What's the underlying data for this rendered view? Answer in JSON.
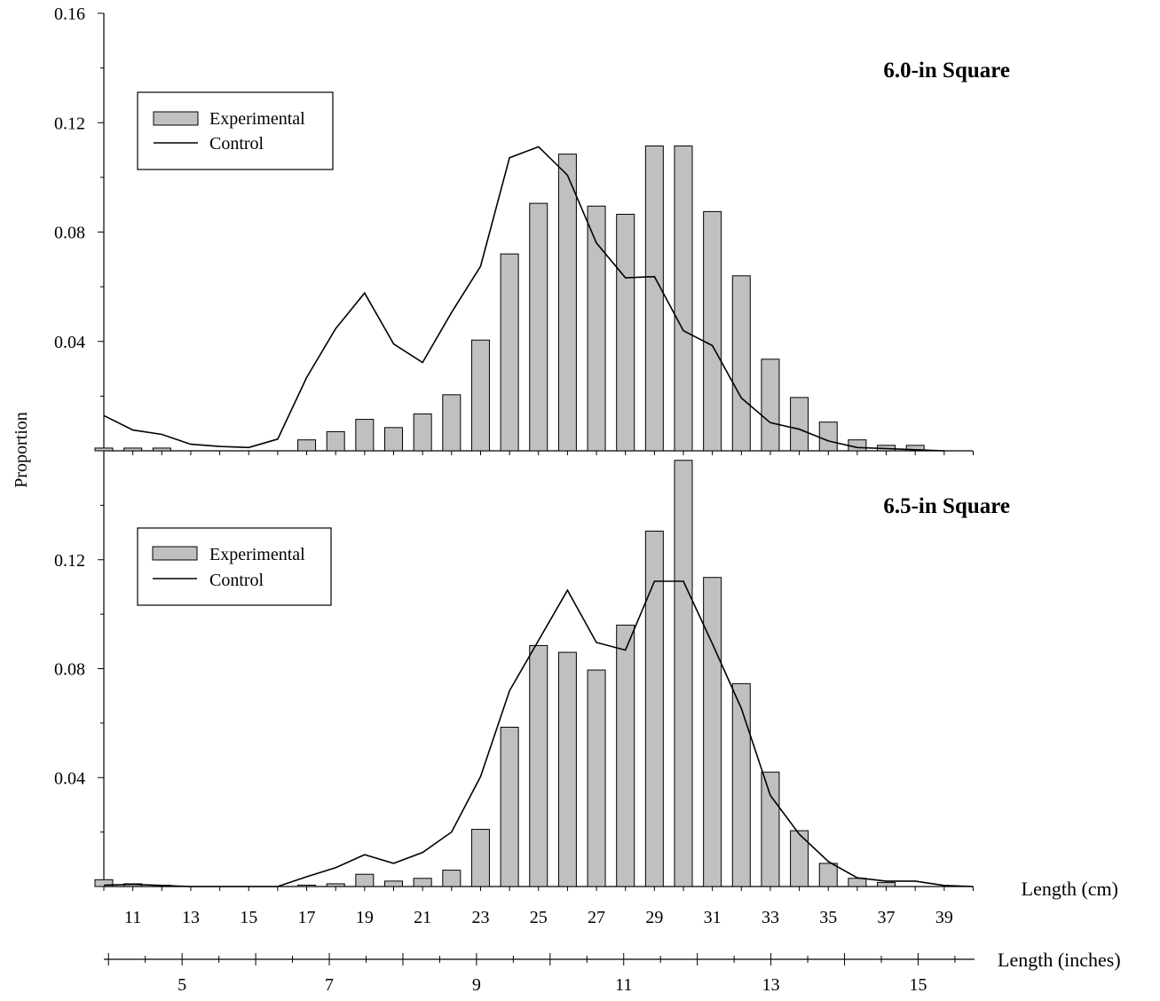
{
  "y_axis_label": "Proportion",
  "x_axis_label_cm": "Length (cm)",
  "x_axis_label_in": "Length (inches)",
  "cm_tick_labels": [
    "11",
    "13",
    "15",
    "17",
    "19",
    "21",
    "23",
    "25",
    "27",
    "29",
    "31",
    "33",
    "35",
    "37",
    "39"
  ],
  "inch_tick_labels": [
    "5",
    "7",
    "9",
    "11",
    "13",
    "15"
  ],
  "colors": {
    "bar_fill": "#c0c0c0",
    "bar_stroke": "#000000",
    "line": "#000000"
  },
  "chart_data": [
    {
      "type": "bar",
      "title": "6.0-in Square",
      "legend": {
        "bar": "Experimental",
        "line": "Control",
        "position": "top-left"
      },
      "ylim": [
        0,
        0.16
      ],
      "ytick_labels": [
        "0.16",
        "0.12",
        "0.08",
        "0.04"
      ],
      "x_cm": [
        10,
        11,
        12,
        13,
        14,
        15,
        16,
        17,
        18,
        19,
        20,
        21,
        22,
        23,
        24,
        25,
        26,
        27,
        28,
        29,
        30,
        31,
        32,
        33,
        34,
        35,
        36,
        37,
        38,
        39
      ],
      "series": [
        {
          "name": "Experimental",
          "values": [
            0.001,
            0.001,
            0.001,
            0,
            0,
            0,
            0,
            0.004,
            0.007,
            0.0115,
            0.0085,
            0.0135,
            0.0205,
            0.0405,
            0.072,
            0.0905,
            0.1085,
            0.0895,
            0.0865,
            0.1115,
            0.1115,
            0.0875,
            0.064,
            0.0335,
            0.0195,
            0.0105,
            0.004,
            0.002,
            0.002,
            0
          ]
        },
        {
          "name": "Control",
          "values": [
            0.0129,
            0.0076,
            0.006,
            0.0024,
            0.0016,
            0.0012,
            0.0043,
            0.0268,
            0.0447,
            0.0577,
            0.0391,
            0.0323,
            0.0506,
            0.0675,
            0.1072,
            0.1112,
            0.1008,
            0.076,
            0.0633,
            0.0637,
            0.0439,
            0.0385,
            0.0193,
            0.0103,
            0.0079,
            0.0036,
            0.0012,
            0.0008,
            0.0004,
            0
          ]
        }
      ]
    },
    {
      "type": "bar",
      "title": "6.5-in Square",
      "legend": {
        "bar": "Experimental",
        "line": "Control",
        "position": "top-left"
      },
      "ylim": [
        0,
        0.16
      ],
      "ytick_labels": [
        "0.12",
        "0.08",
        "0.04"
      ],
      "x_cm": [
        10,
        11,
        12,
        13,
        14,
        15,
        16,
        17,
        18,
        19,
        20,
        21,
        22,
        23,
        24,
        25,
        26,
        27,
        28,
        29,
        30,
        31,
        32,
        33,
        34,
        35,
        36,
        37,
        38,
        39,
        40
      ],
      "series": [
        {
          "name": "Experimental",
          "values": [
            0.0025,
            0.001,
            0.0005,
            0,
            0,
            0,
            0,
            0.0005,
            0.001,
            0.0045,
            0.002,
            0.003,
            0.006,
            0.021,
            0.0585,
            0.0885,
            0.086,
            0.0795,
            0.096,
            0.1305,
            0.1565,
            0.1135,
            0.0745,
            0.042,
            0.0205,
            0.0085,
            0.003,
            0.0015,
            0,
            0,
            0
          ]
        },
        {
          "name": "Control",
          "values": [
            0.0005,
            0.0008,
            0.0004,
            0,
            0,
            0,
            0,
            0.0036,
            0.0069,
            0.0117,
            0.0085,
            0.0125,
            0.02,
            0.0404,
            0.0719,
            0.0904,
            0.1088,
            0.0896,
            0.0868,
            0.1121,
            0.1121,
            0.0892,
            0.0654,
            0.0335,
            0.0192,
            0.0092,
            0.0032,
            0.002,
            0.002,
            0.0004,
            0
          ]
        }
      ]
    }
  ]
}
